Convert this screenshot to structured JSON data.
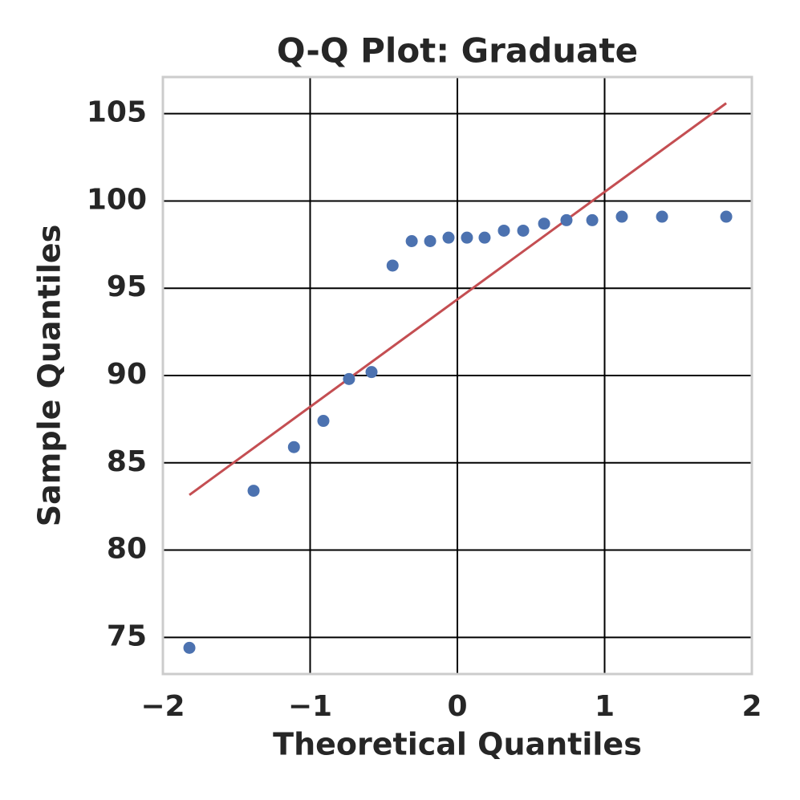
{
  "chart_data": {
    "type": "scatter",
    "title": "Q-Q Plot: Graduate",
    "xlabel": "Theoretical Quantiles",
    "ylabel": "Sample Quantiles",
    "x": [
      -1.82,
      -1.384,
      -1.11,
      -0.91,
      -0.736,
      -0.583,
      -0.44,
      -0.31,
      -0.185,
      -0.06,
      0.065,
      0.185,
      0.316,
      0.447,
      0.589,
      0.741,
      0.916,
      1.117,
      1.39,
      1.826
    ],
    "values": [
      74.4,
      83.4,
      85.9,
      87.4,
      89.8,
      90.2,
      96.3,
      97.7,
      97.7,
      97.9,
      97.9,
      97.9,
      98.3,
      98.3,
      98.7,
      98.9,
      98.9,
      99.1,
      99.1,
      99.1
    ],
    "color": "#4c72b0",
    "line": {
      "x": [
        -1.82,
        1.826
      ],
      "values": [
        83.16,
        105.6
      ],
      "color": "#c44e52"
    },
    "xlim": [
      -2,
      2
    ],
    "xticks": [
      {
        "value": -2,
        "label": "−2"
      },
      {
        "value": -1,
        "label": "−1"
      },
      0,
      1,
      2
    ],
    "ylim": [
      72.9,
      107.1
    ],
    "yticks": [
      75,
      80,
      85,
      90,
      95,
      100,
      105
    ],
    "grid": true
  }
}
